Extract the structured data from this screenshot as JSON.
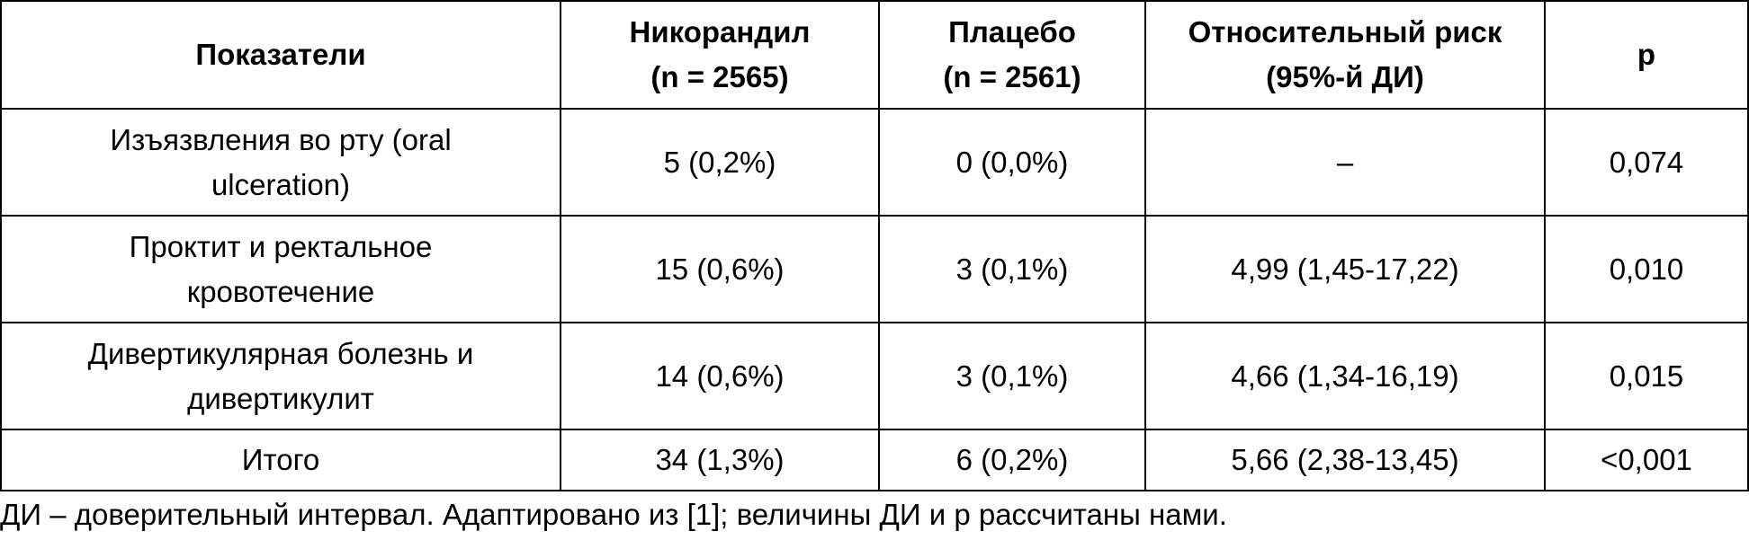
{
  "table": {
    "header": [
      "Показатели",
      "Никорандил\n(n = 2565)",
      "Плацебо\n(n = 2561)",
      "Относительный риск\n(95%-й ДИ)",
      "p"
    ],
    "rows": [
      [
        "Изъязвления во рту (oral\nulceration)",
        "5 (0,2%)",
        "0 (0,0%)",
        "–",
        "0,074"
      ],
      [
        "Проктит и ректальное\nкровотечение",
        "15 (0,6%)",
        "3 (0,1%)",
        "4,99 (1,45-17,22)",
        "0,010"
      ],
      [
        "Дивертикулярная болезнь и\nдивертикулит",
        "14 (0,6%)",
        "3 (0,1%)",
        "4,66 (1,34-16,19)",
        "0,015"
      ],
      [
        "Итого",
        "34 (1,3%)",
        "6 (0,2%)",
        "5,66 (2,38-13,45)",
        "<0,001"
      ]
    ]
  },
  "footnote": "ДИ – доверительный интервал. Адаптировано из [1]; величины ДИ и p рассчитаны нами."
}
